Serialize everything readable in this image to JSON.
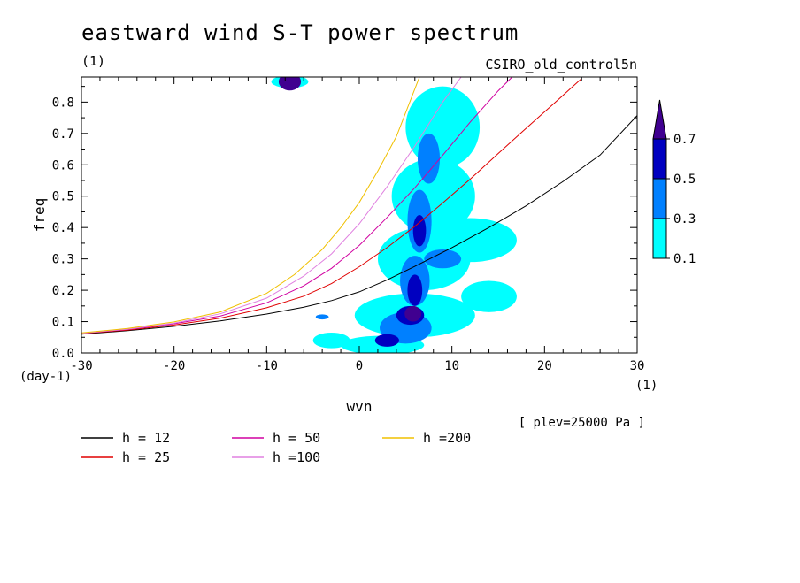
{
  "chart_data": {
    "type": "contour",
    "title": "eastward wind S-T power spectrum",
    "subtitle_left": "(1)",
    "subtitle_right": "CSIRO_old_control5n",
    "xlabel": "wvn",
    "ylabel": "freq",
    "x_unit": "(1)",
    "y_unit": "(day-1)",
    "annotation": "[ plev=25000 Pa ]",
    "xlim": [
      -30,
      30
    ],
    "ylim": [
      0,
      0.88
    ],
    "x_ticks": [
      -30,
      -20,
      -10,
      0,
      10,
      20,
      30
    ],
    "x_tick_labels": [
      "-30",
      "-20",
      "-10",
      "0",
      "10",
      "20",
      "30"
    ],
    "y_ticks": [
      0,
      0.1,
      0.2,
      0.3,
      0.4,
      0.5,
      0.6,
      0.7,
      0.8
    ],
    "y_tick_labels": [
      "0.0",
      "0.1",
      "0.2",
      "0.3",
      "0.4",
      "0.5",
      "0.6",
      "0.7",
      "0.8"
    ],
    "colorbar": {
      "levels": [
        0.1,
        0.3,
        0.5,
        0.7
      ],
      "labels": [
        "0.1",
        "0.3",
        "0.5",
        "0.7"
      ],
      "colors": [
        "#00ffff",
        "#0080ff",
        "#0000c0",
        "#400090"
      ]
    },
    "series": [
      {
        "name": "h = 12",
        "color": "#000000",
        "x": [
          -30,
          -25,
          -20,
          -15,
          -10,
          -6,
          -3,
          0,
          3,
          6,
          10,
          14,
          18,
          22,
          26,
          30
        ],
        "y": [
          0.06,
          0.071,
          0.085,
          0.102,
          0.124,
          0.146,
          0.167,
          0.195,
          0.233,
          0.276,
          0.336,
          0.4,
          0.469,
          0.547,
          0.631,
          0.757
        ]
      },
      {
        "name": "h = 25",
        "color": "#e00000",
        "x": [
          -30,
          -25,
          -20,
          -15,
          -10,
          -6,
          -3,
          0,
          3,
          6,
          9,
          12,
          15,
          18,
          21,
          24
        ],
        "y": [
          0.062,
          0.073,
          0.089,
          0.111,
          0.144,
          0.181,
          0.221,
          0.275,
          0.336,
          0.404,
          0.478,
          0.555,
          0.636,
          0.716,
          0.795,
          0.875
        ]
      },
      {
        "name": "h = 50",
        "color": "#d000a0",
        "x": [
          -30,
          -25,
          -20,
          -15,
          -10,
          -6,
          -3,
          0,
          3,
          6,
          9,
          12,
          15,
          16.5
        ],
        "y": [
          0.063,
          0.075,
          0.093,
          0.118,
          0.16,
          0.214,
          0.27,
          0.343,
          0.432,
          0.527,
          0.63,
          0.737,
          0.836,
          0.88
        ]
      },
      {
        "name": "h =100",
        "color": "#e080e0",
        "x": [
          -30,
          -25,
          -20,
          -15,
          -10,
          -6,
          -3,
          0,
          3,
          6,
          9,
          11
        ],
        "y": [
          0.063,
          0.076,
          0.095,
          0.125,
          0.175,
          0.245,
          0.316,
          0.412,
          0.53,
          0.66,
          0.8,
          0.88
        ]
      },
      {
        "name": "h =200",
        "color": "#f0c000",
        "x": [
          -30,
          -25,
          -20,
          -15,
          -10,
          -7,
          -4,
          -2,
          0,
          2,
          4,
          6.5
        ],
        "y": [
          0.064,
          0.078,
          0.099,
          0.131,
          0.19,
          0.25,
          0.33,
          0.4,
          0.48,
          0.58,
          0.69,
          0.88
        ]
      }
    ],
    "contour_blobs": [
      {
        "x": -7.5,
        "y": 0.865,
        "rx": 1.2,
        "ry": 0.028,
        "level": 3
      },
      {
        "x": -7.5,
        "y": 0.865,
        "rx": 2.0,
        "ry": 0.02,
        "level": 0
      },
      {
        "x": 2.5,
        "y": 0.025,
        "rx": 4.5,
        "ry": 0.03,
        "level": 0
      },
      {
        "x": 6.0,
        "y": 0.12,
        "rx": 6.5,
        "ry": 0.07,
        "level": 0
      },
      {
        "x": 7.0,
        "y": 0.3,
        "rx": 5.0,
        "ry": 0.1,
        "level": 0
      },
      {
        "x": 8.0,
        "y": 0.5,
        "rx": 4.5,
        "ry": 0.12,
        "level": 0
      },
      {
        "x": 9.0,
        "y": 0.72,
        "rx": 4.0,
        "ry": 0.13,
        "level": 0
      },
      {
        "x": 12.0,
        "y": 0.36,
        "rx": 5.0,
        "ry": 0.07,
        "level": 0
      },
      {
        "x": 14.0,
        "y": 0.18,
        "rx": 3.0,
        "ry": 0.05,
        "level": 0
      },
      {
        "x": 5.0,
        "y": 0.08,
        "rx": 2.8,
        "ry": 0.05,
        "level": 1
      },
      {
        "x": 6.0,
        "y": 0.23,
        "rx": 1.6,
        "ry": 0.08,
        "level": 1
      },
      {
        "x": 6.5,
        "y": 0.42,
        "rx": 1.3,
        "ry": 0.1,
        "level": 1
      },
      {
        "x": 7.5,
        "y": 0.62,
        "rx": 1.2,
        "ry": 0.08,
        "level": 1
      },
      {
        "x": 9.0,
        "y": 0.3,
        "rx": 2.0,
        "ry": 0.03,
        "level": 1
      },
      {
        "x": 5.5,
        "y": 0.12,
        "rx": 1.5,
        "ry": 0.03,
        "level": 2
      },
      {
        "x": 6.5,
        "y": 0.39,
        "rx": 0.7,
        "ry": 0.05,
        "level": 2
      },
      {
        "x": 3.0,
        "y": 0.04,
        "rx": 1.3,
        "ry": 0.02,
        "level": 2
      },
      {
        "x": 6.0,
        "y": 0.2,
        "rx": 0.8,
        "ry": 0.05,
        "level": 2
      },
      {
        "x": 5.8,
        "y": 0.125,
        "rx": 0.9,
        "ry": 0.025,
        "level": 3
      },
      {
        "x": -4.0,
        "y": 0.115,
        "rx": 0.7,
        "ry": 0.008,
        "level": 1
      },
      {
        "x": -3.0,
        "y": 0.04,
        "rx": 2.0,
        "ry": 0.025,
        "level": 0
      }
    ]
  }
}
